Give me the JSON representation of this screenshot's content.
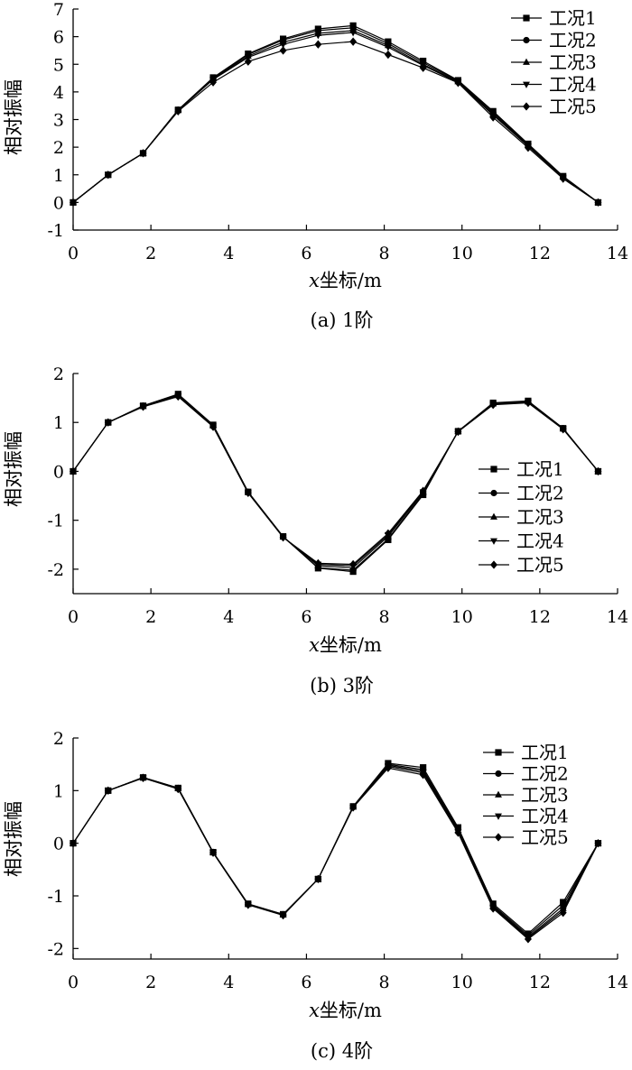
{
  "chart_data": [
    {
      "type": "line",
      "caption": "(a) 1阶",
      "xlabel_var": "x",
      "xlabel_rest": "坐标/m",
      "ylabel": "相对振幅",
      "xlim": [
        0,
        14
      ],
      "ylim": [
        -1,
        7
      ],
      "xticks": [
        0,
        2,
        4,
        6,
        8,
        10,
        12,
        14
      ],
      "yticks": [
        -1,
        0,
        1,
        2,
        3,
        4,
        5,
        6,
        7
      ],
      "grid": false,
      "legend_position": "top-right",
      "x": [
        0,
        0.9,
        1.8,
        2.7,
        3.6,
        4.5,
        5.4,
        6.3,
        7.2,
        8.1,
        9.0,
        9.9,
        10.8,
        11.7,
        12.6,
        13.5
      ],
      "series": [
        {
          "name": "工况1",
          "marker": "square",
          "values": [
            0,
            1.0,
            1.78,
            3.35,
            4.52,
            5.38,
            5.92,
            6.28,
            6.4,
            5.82,
            5.12,
            4.42,
            3.3,
            2.12,
            0.95,
            0
          ]
        },
        {
          "name": "工况2",
          "marker": "circle",
          "values": [
            0,
            1.0,
            1.78,
            3.35,
            4.5,
            5.35,
            5.88,
            6.22,
            6.32,
            5.75,
            5.06,
            4.4,
            3.25,
            2.1,
            0.93,
            0
          ]
        },
        {
          "name": "工况3",
          "marker": "triangle-up",
          "values": [
            0,
            1.0,
            1.78,
            3.34,
            4.48,
            5.3,
            5.8,
            6.12,
            6.22,
            5.68,
            5.0,
            4.37,
            3.2,
            2.07,
            0.92,
            0
          ]
        },
        {
          "name": "工况4",
          "marker": "triangle-down",
          "values": [
            0,
            1.0,
            1.78,
            3.33,
            4.45,
            5.25,
            5.72,
            6.05,
            6.15,
            5.62,
            4.96,
            4.35,
            3.16,
            2.04,
            0.9,
            0
          ]
        },
        {
          "name": "工况5",
          "marker": "diamond",
          "values": [
            0,
            1.0,
            1.78,
            3.3,
            4.35,
            5.1,
            5.5,
            5.72,
            5.82,
            5.35,
            4.87,
            4.33,
            3.08,
            1.98,
            0.86,
            0
          ]
        }
      ]
    },
    {
      "type": "line",
      "caption": "(b) 3阶",
      "xlabel_var": "x",
      "xlabel_rest": "坐标/m",
      "ylabel": "相对振幅",
      "xlim": [
        0,
        14
      ],
      "ylim": [
        -2.5,
        2
      ],
      "xticks": [
        0,
        2,
        4,
        6,
        8,
        10,
        12,
        14
      ],
      "yticks": [
        -2,
        -1,
        0,
        1,
        2
      ],
      "grid": false,
      "legend_position": "lower-right",
      "x": [
        0,
        0.9,
        1.8,
        2.7,
        3.6,
        4.5,
        5.4,
        6.3,
        7.2,
        8.1,
        9.0,
        9.9,
        10.8,
        11.7,
        12.6,
        13.5
      ],
      "series": [
        {
          "name": "工况1",
          "marker": "square",
          "values": [
            0,
            1.0,
            1.34,
            1.58,
            0.95,
            -0.42,
            -1.33,
            -1.98,
            -2.05,
            -1.4,
            -0.48,
            0.82,
            1.4,
            1.44,
            0.88,
            0
          ]
        },
        {
          "name": "工况2",
          "marker": "circle",
          "values": [
            0,
            1.0,
            1.34,
            1.57,
            0.94,
            -0.42,
            -1.34,
            -1.97,
            -2.02,
            -1.38,
            -0.46,
            0.82,
            1.39,
            1.43,
            0.88,
            0
          ]
        },
        {
          "name": "工况3",
          "marker": "triangle-up",
          "values": [
            0,
            1.0,
            1.33,
            1.55,
            0.93,
            -0.43,
            -1.34,
            -1.93,
            -1.97,
            -1.33,
            -0.43,
            0.82,
            1.38,
            1.42,
            0.87,
            0
          ]
        },
        {
          "name": "工况4",
          "marker": "triangle-down",
          "values": [
            0,
            1.0,
            1.33,
            1.54,
            0.92,
            -0.44,
            -1.35,
            -1.9,
            -1.93,
            -1.3,
            -0.42,
            0.81,
            1.37,
            1.41,
            0.87,
            0
          ]
        },
        {
          "name": "工况5",
          "marker": "diamond",
          "values": [
            0,
            1.0,
            1.32,
            1.53,
            0.91,
            -0.44,
            -1.35,
            -1.88,
            -1.9,
            -1.27,
            -0.4,
            0.81,
            1.36,
            1.4,
            0.86,
            0
          ]
        }
      ]
    },
    {
      "type": "line",
      "caption": "(c) 4阶",
      "xlabel_var": "x",
      "xlabel_rest": "坐标/m",
      "ylabel": "相对振幅",
      "xlim": [
        0,
        14
      ],
      "ylim": [
        -2.2,
        2
      ],
      "xticks": [
        0,
        2,
        4,
        6,
        8,
        10,
        12,
        14
      ],
      "yticks": [
        -2,
        -1,
        0,
        1,
        2
      ],
      "grid": false,
      "legend_position": "top-right",
      "x": [
        0,
        0.9,
        1.8,
        2.7,
        3.6,
        4.5,
        5.4,
        6.3,
        7.2,
        8.1,
        9.0,
        9.9,
        10.8,
        11.7,
        12.6,
        13.5
      ],
      "series": [
        {
          "name": "工况1",
          "marker": "square",
          "values": [
            0,
            1.0,
            1.25,
            1.05,
            -0.17,
            -1.15,
            -1.35,
            -0.68,
            0.7,
            1.52,
            1.44,
            0.3,
            -1.15,
            -1.72,
            -1.12,
            0
          ]
        },
        {
          "name": "工况2",
          "marker": "circle",
          "values": [
            0,
            1.0,
            1.25,
            1.05,
            -0.17,
            -1.16,
            -1.35,
            -0.68,
            0.69,
            1.5,
            1.4,
            0.27,
            -1.18,
            -1.75,
            -1.18,
            0
          ]
        },
        {
          "name": "工况3",
          "marker": "triangle-up",
          "values": [
            0,
            1.0,
            1.25,
            1.04,
            -0.18,
            -1.16,
            -1.36,
            -0.68,
            0.69,
            1.48,
            1.37,
            0.25,
            -1.2,
            -1.78,
            -1.24,
            0
          ]
        },
        {
          "name": "工况4",
          "marker": "triangle-down",
          "values": [
            0,
            1.0,
            1.24,
            1.04,
            -0.18,
            -1.17,
            -1.36,
            -0.68,
            0.68,
            1.46,
            1.34,
            0.22,
            -1.22,
            -1.8,
            -1.28,
            0
          ]
        },
        {
          "name": "工况5",
          "marker": "diamond",
          "values": [
            0,
            1.0,
            1.24,
            1.03,
            -0.18,
            -1.17,
            -1.37,
            -0.68,
            0.68,
            1.43,
            1.3,
            0.2,
            -1.24,
            -1.82,
            -1.32,
            0
          ]
        }
      ]
    }
  ]
}
